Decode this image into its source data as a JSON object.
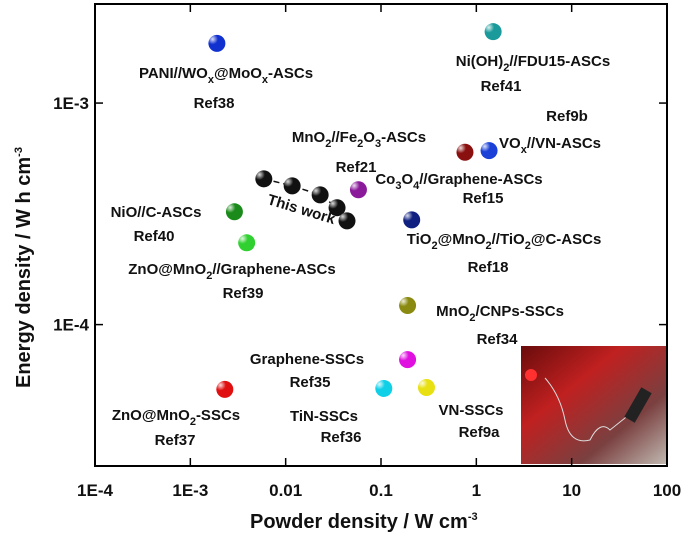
{
  "chart_data": {
    "type": "scatter",
    "x_label": [
      "Powder density / W cm",
      "-3"
    ],
    "y_label": [
      "Energy density / W h cm",
      "-3"
    ],
    "log_x": true,
    "log_y": true,
    "xlim": [
      0.0001,
      100
    ],
    "ylim": [
      2.3e-05,
      0.0028
    ],
    "xticks": [
      {
        "value": 0.0001,
        "label": "1E-4"
      },
      {
        "value": 0.001,
        "label": "1E-3"
      },
      0.01,
      0.1,
      1,
      10,
      100
    ],
    "yticks": [
      {
        "value": 0.0001,
        "label": "1E-4"
      },
      {
        "value": 0.001,
        "label": "1E-3"
      }
    ],
    "series": [
      {
        "name": [
          "PANI//WO",
          "x",
          "@MoO",
          "x",
          "-ASCs"
        ],
        "ref": "Ref38",
        "color": "#1030d0",
        "x": [
          0.0019
        ],
        "values": [
          0.00186
        ]
      },
      {
        "name": [
          "Ni(OH)",
          "2",
          "//FDU15-ASCs"
        ],
        "ref": "Ref41",
        "color": "#1a9a9a",
        "x": [
          1.5
        ],
        "values": [
          0.0021
        ]
      },
      {
        "name": [
          "VO",
          "x",
          "//VN-ASCs"
        ],
        "ref": "Ref9b",
        "color": "#1a40d8",
        "x": [
          1.36
        ],
        "values": [
          0.00061
        ]
      },
      {
        "name": [
          "Co",
          "3",
          "O",
          "4",
          "//Graphene-ASCs"
        ],
        "ref": "Ref15",
        "color": "#8a1010",
        "x": [
          0.76
        ],
        "values": [
          0.0006
        ]
      },
      {
        "name": [
          "MnO",
          "2",
          "//Fe",
          "2",
          "O",
          "3",
          "-ASCs"
        ],
        "ref": "Ref21",
        "color": "#8a1a9a",
        "x": [
          0.058
        ],
        "values": [
          0.000406
        ]
      },
      {
        "name": [
          "This work"
        ],
        "color": "#111111",
        "x": [
          0.0059,
          0.0117,
          0.023,
          0.0346,
          0.044
        ],
        "values": [
          0.000455,
          0.000423,
          0.000385,
          0.000337,
          0.000294
        ]
      },
      {
        "name": [
          "NiO//C-ASCs"
        ],
        "ref": "Ref40",
        "color": "#1a8a1a",
        "x": [
          0.0029
        ],
        "values": [
          0.000323
        ]
      },
      {
        "name": [
          "ZnO@MnO",
          "2",
          "//Graphene-ASCs"
        ],
        "ref": "Ref39",
        "color": "#30d030",
        "x": [
          0.0039
        ],
        "values": [
          0.000234
        ]
      },
      {
        "name": [
          "TiO",
          "2",
          "@MnO",
          "2",
          "//TiO",
          "2",
          "@C-ASCs"
        ],
        "ref": "Ref18",
        "color": "#102080",
        "x": [
          0.21
        ],
        "values": [
          0.000297
        ]
      },
      {
        "name": [
          "MnO",
          "2",
          "/CNPs-SSCs"
        ],
        "ref": "Ref34",
        "color": "#8a8a10",
        "x": [
          0.19
        ],
        "values": [
          0.000122
        ]
      },
      {
        "name": [
          "Graphene-SSCs"
        ],
        "ref": "Ref35",
        "color": "#e010e0",
        "x": [
          0.19
        ],
        "values": [
          6.95e-05
        ]
      },
      {
        "name": [
          "TiN-SSCs"
        ],
        "ref": "Ref36",
        "color": "#10d0e8",
        "x": [
          0.107
        ],
        "values": [
          5.15e-05
        ]
      },
      {
        "name": [
          "VN-SSCs"
        ],
        "ref": "Ref9a",
        "color": "#e8e010",
        "x": [
          0.3
        ],
        "values": [
          5.2e-05
        ]
      },
      {
        "name": [
          "ZnO@MnO",
          "2",
          "-SSCs"
        ],
        "ref": "Ref37",
        "color": "#e01010",
        "x": [
          0.0023
        ],
        "values": [
          5.1e-05
        ]
      }
    ]
  }
}
